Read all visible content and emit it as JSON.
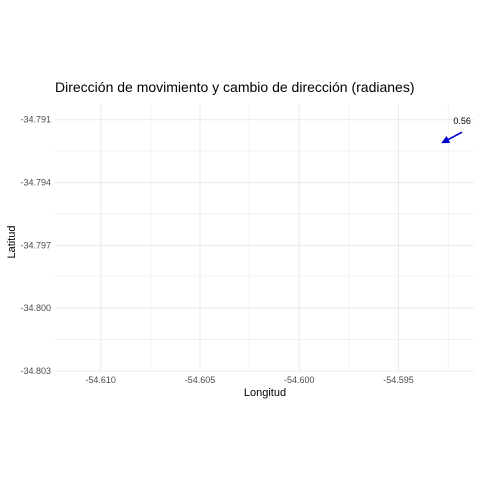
{
  "chart_data": {
    "type": "scatter",
    "title": "Dirección de movimiento y cambio de dirección (radianes)",
    "xlabel": "Longitud",
    "ylabel": "Latitud",
    "xlim": [
      -54.6123,
      -54.5912
    ],
    "ylim": [
      -34.803,
      -34.7903
    ],
    "x_ticks": [
      -54.61,
      -54.605,
      -54.6,
      -54.595
    ],
    "x_tick_labels": [
      "-54.610",
      "-54.605",
      "-54.600",
      "-54.595"
    ],
    "y_ticks": [
      -34.791,
      -34.794,
      -34.797,
      -34.8,
      -34.803
    ],
    "y_tick_labels": [
      "-34.791",
      "-34.794",
      "-34.797",
      "-34.800",
      "-34.803"
    ],
    "grid": true,
    "arrows": [
      {
        "x": -54.5918,
        "y": -34.7916,
        "xend": -54.5928,
        "yend": -34.7921,
        "label": "0.56",
        "color": "#0000cc"
      }
    ],
    "colors": {
      "grid": "#ebebeb",
      "arrow": "#0000cc",
      "background": "#ffffff"
    }
  }
}
